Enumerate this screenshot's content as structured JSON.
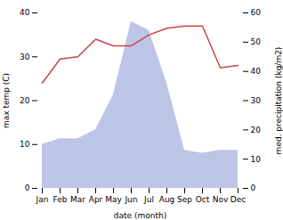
{
  "chart_data": {
    "type": "line",
    "xlabel": "date (month)",
    "ylabel": "max temp (C)",
    "y2label": "med. precipitation (kg/m2)",
    "categories": [
      "Jan",
      "Feb",
      "Mar",
      "Apr",
      "May",
      "Jun",
      "Jul",
      "Aug",
      "Sep",
      "Oct",
      "Nov",
      "Dec"
    ],
    "series": [
      {
        "type": "area",
        "axis": "y2",
        "color": "#bcc5e8",
        "values": [
          15,
          17,
          17,
          20,
          32,
          57,
          54,
          36,
          13,
          12,
          13,
          13
        ]
      },
      {
        "type": "line",
        "color": "#cc4444",
        "values": [
          24,
          29.5,
          30,
          34,
          32.5,
          32.5,
          35,
          36.5,
          37,
          37,
          27.5,
          28
        ]
      }
    ],
    "ylim": [
      0,
      40
    ],
    "yticks": [
      0,
      10,
      20,
      30,
      40
    ],
    "y2lim": [
      0,
      60
    ],
    "y2ticks": [
      0,
      10,
      20,
      30,
      40,
      50,
      60
    ],
    "grid": false
  }
}
